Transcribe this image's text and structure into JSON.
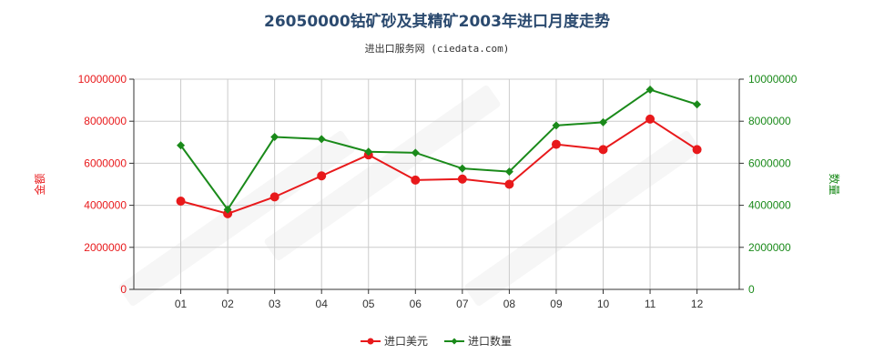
{
  "chart_data": {
    "type": "line",
    "title": "26050000钴矿砂及其精矿2003年进口月度走势",
    "subtitle": "进出口服务网 (ciedata.com)",
    "categories": [
      "01",
      "02",
      "03",
      "04",
      "05",
      "06",
      "07",
      "08",
      "09",
      "10",
      "11",
      "12"
    ],
    "y_left": {
      "label": "金额",
      "range": [
        0,
        10000000
      ],
      "ticks": [
        "0",
        "2000000",
        "4000000",
        "6000000",
        "8000000",
        "10000000"
      ],
      "color": "#e8191b"
    },
    "y_right": {
      "label": "数量",
      "range": [
        0,
        10000000
      ],
      "ticks": [
        "0",
        "2000000",
        "4000000",
        "6000000",
        "8000000",
        "10000000"
      ],
      "color": "#1a8a1a"
    },
    "series": [
      {
        "name": "进口美元",
        "axis": "left",
        "color": "#e8191b",
        "marker": "circle",
        "values": [
          4200000,
          3600000,
          4400000,
          5400000,
          6400000,
          5200000,
          5250000,
          5000000,
          6900000,
          6650000,
          8100000,
          6650000
        ]
      },
      {
        "name": "进口数量",
        "axis": "right",
        "color": "#1a8a1a",
        "marker": "diamond",
        "values": [
          6850000,
          3800000,
          7250000,
          7150000,
          6550000,
          6500000,
          5750000,
          5600000,
          7800000,
          7950000,
          9500000,
          8800000
        ]
      }
    ],
    "grid": true,
    "legend_position": "bottom"
  }
}
